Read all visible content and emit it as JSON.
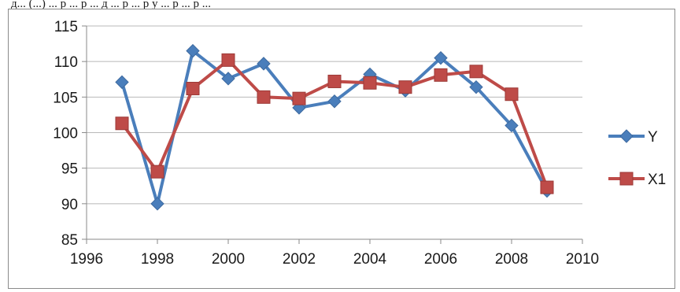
{
  "caption": "д... (...) ... р ... р ... д ... р ... р у ... р ... р ...",
  "chart_data": {
    "type": "line",
    "title": "",
    "xlabel": "",
    "ylabel": "",
    "xlim": [
      1996,
      2010
    ],
    "ylim": [
      85,
      115
    ],
    "x_ticks": [
      1996,
      1998,
      2000,
      2002,
      2004,
      2006,
      2008,
      2010
    ],
    "y_ticks": [
      85,
      90,
      95,
      100,
      105,
      110,
      115
    ],
    "grid": "horizontal",
    "legend": "right",
    "series": [
      {
        "name": "Y",
        "color": "#4a7ebb",
        "marker": "diamond",
        "x": [
          1997,
          1998,
          1999,
          2000,
          2001,
          2002,
          2003,
          2004,
          2005,
          2006,
          2007,
          2008,
          2009
        ],
        "values": [
          107.1,
          90.0,
          111.5,
          107.6,
          109.7,
          103.5,
          104.4,
          108.2,
          105.9,
          110.5,
          106.4,
          101.0,
          91.8
        ]
      },
      {
        "name": "X1",
        "color": "#be4b48",
        "marker": "square",
        "x": [
          1997,
          1998,
          1999,
          2000,
          2001,
          2002,
          2003,
          2004,
          2005,
          2006,
          2007,
          2008,
          2009
        ],
        "values": [
          101.3,
          94.5,
          106.2,
          110.2,
          105.0,
          104.8,
          107.2,
          107.0,
          106.4,
          108.1,
          108.6,
          105.4,
          92.3
        ]
      }
    ]
  }
}
